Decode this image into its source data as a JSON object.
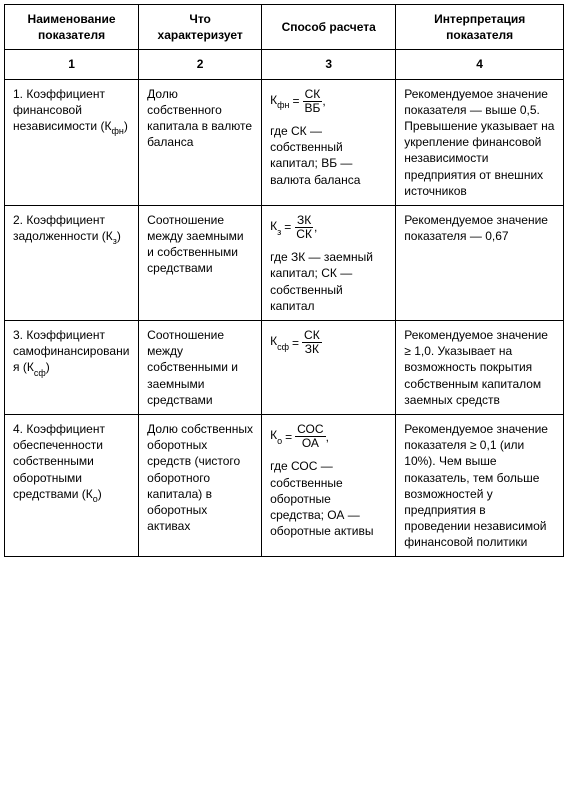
{
  "table": {
    "headers": [
      "Наименование показателя",
      "Что характеризует",
      "Способ расчета",
      "Интерпретация показателя"
    ],
    "col_numbers": [
      "1",
      "2",
      "3",
      "4"
    ],
    "col_widths_pct": [
      24,
      22,
      24,
      30
    ],
    "border_color": "#000000",
    "background_color": "#ffffff",
    "font_size_pt": 9,
    "rows": [
      {
        "name_html": "1. Коэффициент финансовой независимости (К<sub class=\"sub\">фн</sub>)",
        "char": "Долю собственного капитала в валюте баланса",
        "formula": {
          "lhs_html": "К<sub class=\"sub\">фн</sub>",
          "num": "СК",
          "den": "ВБ",
          "trailing": ","
        },
        "formula_desc": "где СК — собственный капитал; ВБ — валюта баланса",
        "interp": "Рекомендуемое значение показателя — выше 0,5. Превышение указывает на укрепление финансовой независимости предприятия от внешних источников"
      },
      {
        "name_html": "2. Коэффициент задолженности (К<sub class=\"sub\">з</sub>)",
        "char": "Соотношение между заемными и собственными средствами",
        "formula": {
          "lhs_html": "К<sub class=\"sub\">з</sub>",
          "num": "ЗК",
          "den": "СК",
          "trailing": ","
        },
        "formula_desc": "где ЗК — заемный капитал; СК — собственный капитал",
        "interp": "Рекомендуемое значение показателя — 0,67"
      },
      {
        "name_html": "3. Коэффициент самофинансирования (К<sub class=\"sub\">сф</sub>)",
        "char": "Соотношение между собственными и заемными средствами",
        "formula": {
          "lhs_html": "К<sub class=\"sub\">сф</sub>",
          "num": "СК",
          "den": "ЗК",
          "trailing": ""
        },
        "formula_desc": "",
        "interp": "Рекомендуемое значение ≥ 1,0. Указывает на возможность покрытия собственным капиталом заемных средств"
      },
      {
        "name_html": "4. Коэффициент обеспеченности собственными оборотными средствами (К<sub class=\"sub\">о</sub>)",
        "char": "Долю собственных оборотных средств (чистого оборотного капитала) в оборотных активах",
        "formula": {
          "lhs_html": "К<sub class=\"sub\">о</sub>",
          "num": "СОС",
          "den": "ОА",
          "trailing": ","
        },
        "formula_desc": "где СОС — собственные оборотные средства; ОА — оборотные активы",
        "interp": "Рекомендуемое значение показателя ≥ 0,1 (или 10%). Чем выше показатель, тем больше возможностей у предприятия в проведении независимой финансовой политики"
      }
    ]
  }
}
